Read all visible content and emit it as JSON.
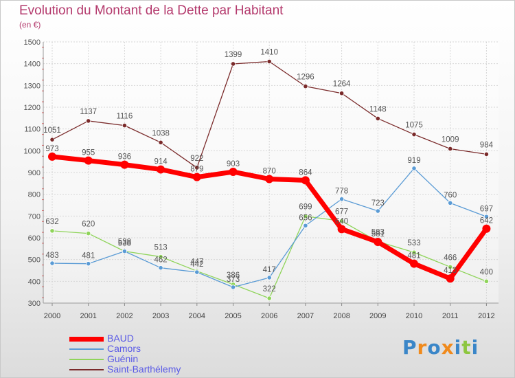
{
  "chart_data": {
    "type": "line",
    "title": "Evolution du Montant de la Dette par Habitant",
    "subtitle": "(en €)",
    "x": [
      "2000",
      "2001",
      "2002",
      "2003",
      "2004",
      "2005",
      "2006",
      "2007",
      "2008",
      "2009",
      "2010",
      "2011",
      "2012"
    ],
    "ylim": [
      300,
      1500
    ],
    "yticks": [
      300,
      400,
      500,
      600,
      700,
      800,
      900,
      1000,
      1100,
      1200,
      1300,
      1400,
      1500
    ],
    "grid": true,
    "legend_position": "bottom-left",
    "series": [
      {
        "name": "BAUD",
        "color": "#ff0000",
        "values": [
          973,
          955,
          936,
          914,
          879,
          903,
          870,
          864,
          640,
          581,
          481,
          413,
          642
        ]
      },
      {
        "name": "Camors",
        "color": "#5a9bd5",
        "values": [
          483,
          481,
          538,
          462,
          442,
          373,
          417,
          656,
          778,
          723,
          919,
          760,
          697
        ]
      },
      {
        "name": "Guénin",
        "color": "#8fd45a",
        "values": [
          632,
          620,
          538,
          513,
          447,
          386,
          322,
          699,
          677,
          583,
          533,
          466,
          400
        ]
      },
      {
        "name": "Saint-Barthélemy",
        "color": "#7a2a2a",
        "values": [
          1051,
          1137,
          1116,
          1038,
          922,
          1399,
          1410,
          1296,
          1264,
          1148,
          1075,
          1009,
          984
        ]
      }
    ]
  },
  "brand": {
    "letters": [
      "P",
      "r",
      "o",
      "x",
      "i",
      "t",
      "i"
    ],
    "colors": [
      "#3a86c8",
      "#f08a1c",
      "#3a86c8",
      "#f08a1c",
      "#3a86c8",
      "#8dc63f",
      "#3a86c8"
    ]
  }
}
